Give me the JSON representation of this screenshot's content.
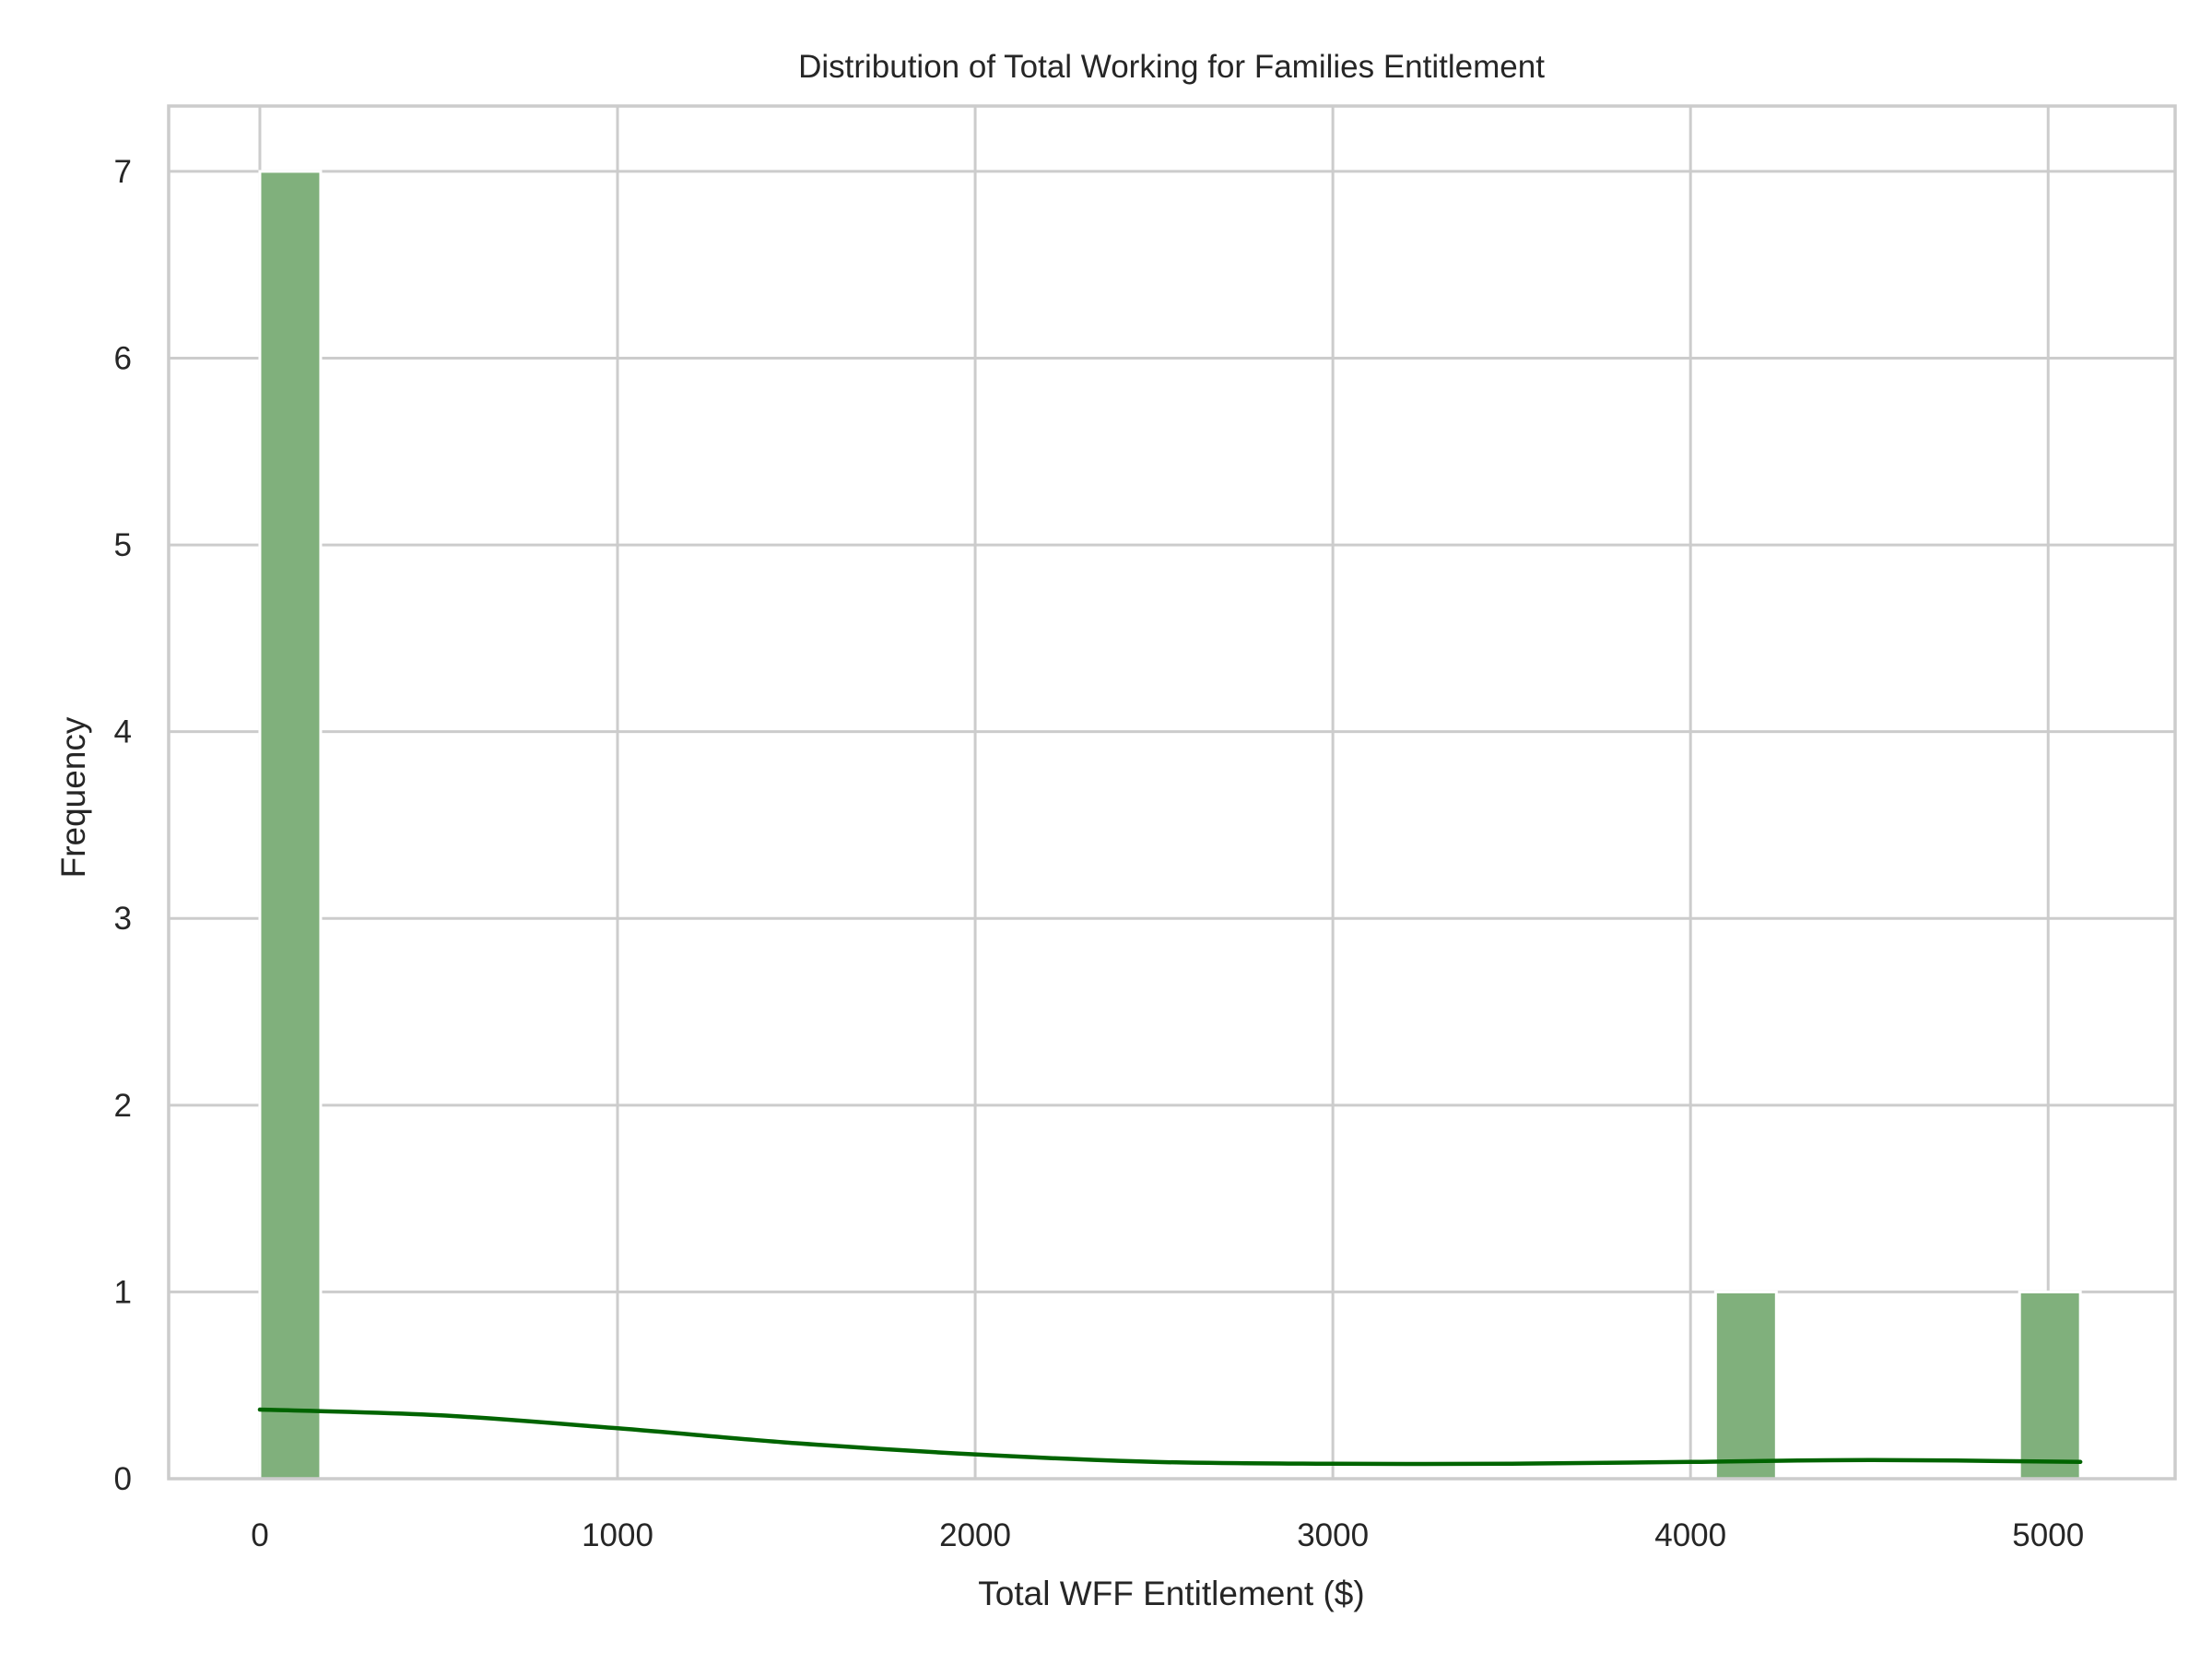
{
  "chart_data": {
    "type": "bar",
    "title": "Distribution of Total Working for Families Entitlement",
    "xlabel": "Total WFF Entitlement ($)",
    "ylabel": "Frequency",
    "xlim": [
      -255,
      5355
    ],
    "ylim": [
      0,
      7.35
    ],
    "x_ticks": [
      0,
      1000,
      2000,
      3000,
      4000,
      5000
    ],
    "y_ticks": [
      0,
      1,
      2,
      3,
      4,
      5,
      6,
      7
    ],
    "grid": true,
    "bins": [
      {
        "x0": 0,
        "x1": 170,
        "count": 7
      },
      {
        "x0": 4070,
        "x1": 4240,
        "count": 1
      },
      {
        "x0": 4920,
        "x1": 5090,
        "count": 1
      }
    ],
    "kde": {
      "x": [
        0,
        500,
        1000,
        1500,
        2000,
        2500,
        3000,
        3500,
        4000,
        4500,
        5090
      ],
      "y": [
        0.37,
        0.34,
        0.27,
        0.19,
        0.13,
        0.09,
        0.08,
        0.08,
        0.09,
        0.1,
        0.09
      ]
    },
    "colors": {
      "bar_fill": "#80b07c",
      "bar_edge": "#ffffff",
      "kde_line": "#006400",
      "grid": "#cccccc",
      "spine": "#cccccc",
      "text": "#262626"
    }
  }
}
